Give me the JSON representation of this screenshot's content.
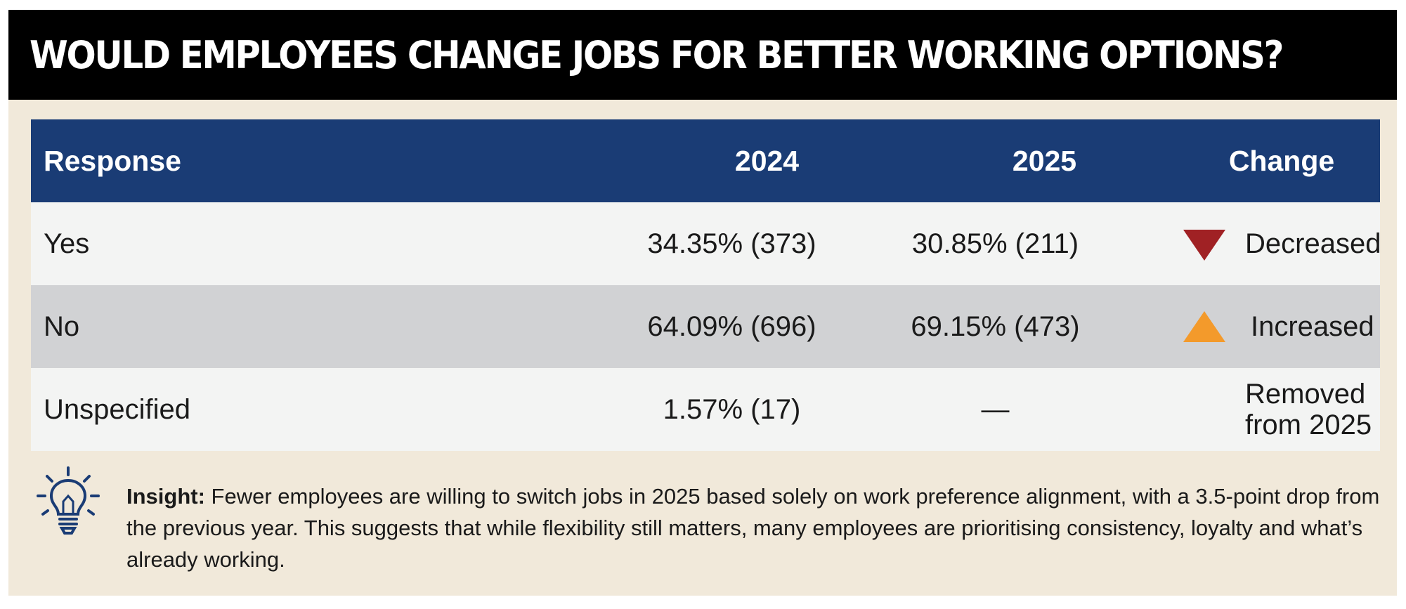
{
  "title": "WOULD EMPLOYEES CHANGE JOBS FOR BETTER WORKING OPTIONS?",
  "table": {
    "headers": {
      "response": "Response",
      "y2024": "2024",
      "y2025": "2025",
      "change": "Change"
    },
    "rows": [
      {
        "response": "Yes",
        "y2024": "34.35% (373)",
        "y2025": "30.85% (211)",
        "change": "Decreased",
        "direction": "down",
        "color": "#a02124"
      },
      {
        "response": "No",
        "y2024": "64.09% (696)",
        "y2025": "69.15% (473)",
        "change": "Increased",
        "direction": "up",
        "color": "#f39a2b"
      },
      {
        "response": "Unspecified",
        "y2024": "1.57% (17)",
        "y2025": "—",
        "change_line1": "Removed",
        "change_line2": "from 2025"
      }
    ]
  },
  "colors": {
    "header_bg": "#1a3c75",
    "title_bg": "#000000",
    "card_bg": "#f1e9da",
    "row_light": "#f3f4f3",
    "row_grey": "#d1d2d4"
  },
  "insight": {
    "icon": "lightbulb-icon",
    "label": "Insight:",
    "text": " Fewer employees are willing to switch jobs in 2025 based solely on work preference alignment, with a 3.5-point drop from the previous year. This suggests that while flexibility still matters, many employees are prioritising consistency, loyalty and what’s already working."
  }
}
